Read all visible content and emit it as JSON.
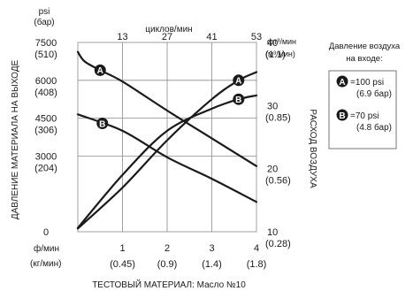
{
  "chart_data": {
    "type": "line",
    "title": "",
    "left_axis": {
      "unit_line1": "psi",
      "unit_line2": "(бар)",
      "label": "ДАВЛЕНИЕ МАТЕРИАЛА НА ВЫХОДЕ",
      "range": [
        0,
        7500
      ],
      "ticks": [
        {
          "value": 7500,
          "main": "7500",
          "sub": "(510)"
        },
        {
          "value": 6000,
          "main": "6000",
          "sub": "(408)"
        },
        {
          "value": 4500,
          "main": "4500",
          "sub": "(306)"
        },
        {
          "value": 3000,
          "main": "3000",
          "sub": "(204)"
        },
        {
          "value": 0,
          "main": "0",
          "sub": ""
        }
      ]
    },
    "right_axis": {
      "unit_line1": "фт³/мин",
      "unit_line2": "(м³/мин)",
      "label": "РАСХОД ВОЗДУХА",
      "range": [
        10,
        40
      ],
      "ticks": [
        {
          "value": 40,
          "main": "40",
          "sub": "(1.1)"
        },
        {
          "value": 30,
          "main": "30",
          "sub": "(0.85)"
        },
        {
          "value": 20,
          "main": "20",
          "sub": "(0.56)"
        },
        {
          "value": 10,
          "main": "10",
          "sub": "(0.28)"
        }
      ]
    },
    "top_axis": {
      "label": "циклов/мин",
      "ticks": [
        {
          "value": 1,
          "label": "13"
        },
        {
          "value": 2,
          "label": "27"
        },
        {
          "value": 3,
          "label": "41"
        },
        {
          "value": 4,
          "label": "53"
        }
      ]
    },
    "bottom_axis": {
      "unit_line1": "ф/мин",
      "unit_line2": "(кг/мин)",
      "label": "ТЕСТОВЫЙ МАТЕРИАЛ: Масло №10",
      "range": [
        0,
        4
      ],
      "ticks": [
        {
          "value": 1,
          "main": "1",
          "sub": "(0.45)"
        },
        {
          "value": 2,
          "main": "2",
          "sub": "(0.9)"
        },
        {
          "value": 3,
          "main": "3",
          "sub": "(1.4)"
        },
        {
          "value": 4,
          "main": "4",
          "sub": "(1.8)"
        }
      ]
    },
    "grid": true,
    "series": [
      {
        "name": "A",
        "axis": "left",
        "x": [
          0,
          0.15,
          0.5,
          1,
          2,
          3,
          4
        ],
        "y": [
          7130,
          6750,
          6400,
          5950,
          4800,
          3700,
          2600
        ],
        "marker_x": 0.5
      },
      {
        "name": "B",
        "axis": "left",
        "x": [
          0,
          1,
          2,
          3,
          4
        ],
        "y": [
          4650,
          4000,
          2950,
          2100,
          1180
        ],
        "marker_x": 0.55
      },
      {
        "name": "A",
        "axis": "right",
        "x": [
          0,
          1,
          2,
          3,
          3.6,
          4
        ],
        "y": [
          10.5,
          17,
          24.5,
          31,
          34,
          35.3
        ],
        "marker_x": 3.6
      },
      {
        "name": "B",
        "axis": "right",
        "x": [
          0,
          1,
          2,
          3,
          3.6,
          4
        ],
        "y": [
          10.6,
          19,
          26,
          29.5,
          31,
          31.6
        ],
        "marker_x": 3.6
      }
    ],
    "legend": {
      "title": "Давление воздуха на входе:",
      "items": [
        {
          "marker": "A",
          "line1": "=100 psi",
          "line2": "(6.9 бар)"
        },
        {
          "marker": "B",
          "line1": "=70 psi",
          "line2": "(4.8 бар)"
        }
      ]
    }
  }
}
